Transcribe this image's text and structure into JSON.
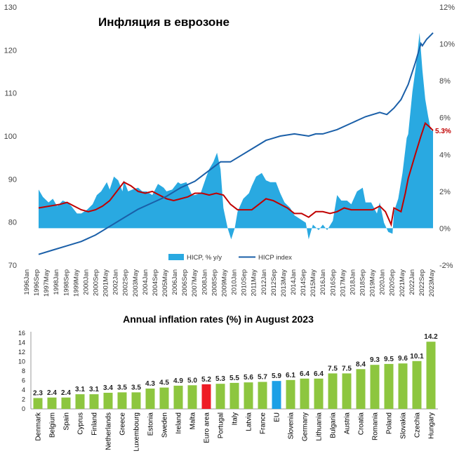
{
  "chart_data": [
    {
      "type": "area",
      "title": "Инфляция в еврозоне",
      "y_left": {
        "min": 70,
        "max": 130,
        "ticks": [
          "70",
          "80",
          "90",
          "100",
          "110",
          "120",
          "130"
        ]
      },
      "y_right": {
        "min": -2,
        "max": 12,
        "ticks": [
          "-2%",
          "0%",
          "2%",
          "4%",
          "6%",
          "8%",
          "10%",
          "12%"
        ]
      },
      "x_start": 1996.0,
      "x_end": 2023.75,
      "x_ticks": [
        "1996Jan",
        "1996Sep",
        "1997May",
        "1998Jan",
        "1998Sep",
        "1999May",
        "2000Jan",
        "2000Sep",
        "2001May",
        "2002Jan",
        "2002Sep",
        "2003May",
        "2004Jan",
        "2004Sep",
        "2005May",
        "2006Jan",
        "2006Sep",
        "2007May",
        "2008Jan",
        "2008Sep",
        "2009May",
        "2010Jan",
        "2010Sep",
        "2011May",
        "2012Jan",
        "2012Sep",
        "2013May",
        "2014Jan",
        "2014Sep",
        "2015May",
        "2016Jan",
        "2016Sep",
        "2017May",
        "2018Jan",
        "2018Sep",
        "2019May",
        "2020Jan",
        "2020Sep",
        "2021May",
        "2022Jan",
        "2022Sep",
        "2023May"
      ],
      "legend": {
        "position": "bottom",
        "items": [
          "HICP, % y/y",
          "HICP index"
        ]
      },
      "callout": "5.3%",
      "series": [
        {
          "name": "HICP, % y/y",
          "axis": "right",
          "style": "area",
          "color": "#29a9e1",
          "points": [
            [
              1996.0,
              2.1
            ],
            [
              1996.3,
              1.7
            ],
            [
              1996.7,
              1.4
            ],
            [
              1997.0,
              1.6
            ],
            [
              1997.3,
              1.2
            ],
            [
              1997.7,
              1.5
            ],
            [
              1998.0,
              1.4
            ],
            [
              1998.3,
              1.2
            ],
            [
              1998.7,
              0.8
            ],
            [
              1999.0,
              0.8
            ],
            [
              1999.4,
              1.0
            ],
            [
              1999.8,
              1.3
            ],
            [
              2000.1,
              1.8
            ],
            [
              2000.4,
              2.0
            ],
            [
              2000.8,
              2.5
            ],
            [
              2001.0,
              2.1
            ],
            [
              2001.3,
              2.8
            ],
            [
              2001.6,
              2.6
            ],
            [
              2001.9,
              2.0
            ],
            [
              2002.0,
              2.6
            ],
            [
              2002.3,
              2.0
            ],
            [
              2002.6,
              2.1
            ],
            [
              2003.0,
              2.2
            ],
            [
              2003.3,
              2.0
            ],
            [
              2003.6,
              2.0
            ],
            [
              2004.0,
              1.8
            ],
            [
              2004.4,
              2.4
            ],
            [
              2004.8,
              2.2
            ],
            [
              2005.0,
              2.0
            ],
            [
              2005.4,
              2.1
            ],
            [
              2005.8,
              2.5
            ],
            [
              2006.0,
              2.4
            ],
            [
              2006.4,
              2.5
            ],
            [
              2006.8,
              1.8
            ],
            [
              2007.0,
              1.8
            ],
            [
              2007.4,
              1.9
            ],
            [
              2007.8,
              2.8
            ],
            [
              2008.0,
              3.2
            ],
            [
              2008.3,
              3.6
            ],
            [
              2008.55,
              4.1
            ],
            [
              2008.8,
              3.2
            ],
            [
              2009.0,
              1.1
            ],
            [
              2009.3,
              0.0
            ],
            [
              2009.55,
              -0.6
            ],
            [
              2009.8,
              0.0
            ],
            [
              2010.0,
              0.9
            ],
            [
              2010.4,
              1.6
            ],
            [
              2010.8,
              1.9
            ],
            [
              2011.0,
              2.3
            ],
            [
              2011.3,
              2.8
            ],
            [
              2011.7,
              3.0
            ],
            [
              2012.0,
              2.6
            ],
            [
              2012.3,
              2.5
            ],
            [
              2012.7,
              2.5
            ],
            [
              2013.0,
              1.9
            ],
            [
              2013.3,
              1.4
            ],
            [
              2013.7,
              1.1
            ],
            [
              2014.0,
              0.7
            ],
            [
              2014.4,
              0.5
            ],
            [
              2014.8,
              0.3
            ],
            [
              2015.0,
              -0.6
            ],
            [
              2015.3,
              0.2
            ],
            [
              2015.7,
              -0.1
            ],
            [
              2016.0,
              0.2
            ],
            [
              2016.3,
              -0.1
            ],
            [
              2016.7,
              0.4
            ],
            [
              2017.0,
              1.8
            ],
            [
              2017.3,
              1.5
            ],
            [
              2017.7,
              1.5
            ],
            [
              2018.0,
              1.3
            ],
            [
              2018.4,
              2.0
            ],
            [
              2018.8,
              2.2
            ],
            [
              2019.0,
              1.4
            ],
            [
              2019.4,
              1.4
            ],
            [
              2019.8,
              0.8
            ],
            [
              2020.0,
              1.4
            ],
            [
              2020.3,
              0.3
            ],
            [
              2020.6,
              -0.2
            ],
            [
              2020.9,
              -0.3
            ],
            [
              2021.0,
              0.9
            ],
            [
              2021.3,
              1.6
            ],
            [
              2021.6,
              3.0
            ],
            [
              2021.9,
              4.9
            ],
            [
              2022.0,
              5.1
            ],
            [
              2022.3,
              7.4
            ],
            [
              2022.6,
              9.1
            ],
            [
              2022.8,
              10.6
            ],
            [
              2023.0,
              8.6
            ],
            [
              2023.2,
              7.0
            ],
            [
              2023.4,
              6.1
            ],
            [
              2023.6,
              5.3
            ],
            [
              2023.75,
              5.3
            ]
          ]
        },
        {
          "name": "",
          "axis": "right",
          "style": "line",
          "color": "#c00000",
          "points": [
            [
              1996.0,
              1.1
            ],
            [
              1997.5,
              1.3
            ],
            [
              1998.0,
              1.4
            ],
            [
              1998.5,
              1.2
            ],
            [
              1999.0,
              1.0
            ],
            [
              1999.5,
              0.9
            ],
            [
              2000.0,
              1.0
            ],
            [
              2000.5,
              1.2
            ],
            [
              2001.0,
              1.5
            ],
            [
              2001.5,
              2.0
            ],
            [
              2002.0,
              2.5
            ],
            [
              2002.5,
              2.3
            ],
            [
              2003.0,
              2.0
            ],
            [
              2003.5,
              1.9
            ],
            [
              2004.0,
              2.0
            ],
            [
              2004.5,
              1.8
            ],
            [
              2005.0,
              1.6
            ],
            [
              2005.5,
              1.5
            ],
            [
              2006.0,
              1.6
            ],
            [
              2006.5,
              1.7
            ],
            [
              2007.0,
              1.9
            ],
            [
              2007.5,
              1.9
            ],
            [
              2008.0,
              1.8
            ],
            [
              2008.5,
              1.9
            ],
            [
              2009.0,
              1.8
            ],
            [
              2009.5,
              1.3
            ],
            [
              2010.0,
              1.0
            ],
            [
              2010.5,
              1.0
            ],
            [
              2011.0,
              1.0
            ],
            [
              2011.5,
              1.3
            ],
            [
              2012.0,
              1.6
            ],
            [
              2012.5,
              1.5
            ],
            [
              2013.0,
              1.3
            ],
            [
              2013.5,
              1.1
            ],
            [
              2014.0,
              0.8
            ],
            [
              2014.5,
              0.8
            ],
            [
              2015.0,
              0.6
            ],
            [
              2015.5,
              0.9
            ],
            [
              2016.0,
              0.9
            ],
            [
              2016.5,
              0.8
            ],
            [
              2017.0,
              0.9
            ],
            [
              2017.5,
              1.1
            ],
            [
              2018.0,
              1.0
            ],
            [
              2018.5,
              1.0
            ],
            [
              2019.0,
              1.0
            ],
            [
              2019.5,
              1.0
            ],
            [
              2020.0,
              1.2
            ],
            [
              2020.4,
              0.9
            ],
            [
              2020.8,
              0.2
            ],
            [
              2021.0,
              1.1
            ],
            [
              2021.5,
              0.9
            ],
            [
              2021.8,
              1.9
            ],
            [
              2022.0,
              2.7
            ],
            [
              2022.5,
              4.0
            ],
            [
              2022.9,
              5.0
            ],
            [
              2023.2,
              5.7
            ],
            [
              2023.5,
              5.5
            ],
            [
              2023.75,
              5.3
            ]
          ]
        },
        {
          "name": "HICP index",
          "axis": "left",
          "style": "line",
          "color": "#1a5fa8",
          "points": [
            [
              1996.0,
              72.5
            ],
            [
              1997.0,
              73.5
            ],
            [
              1998.0,
              74.5
            ],
            [
              1999.0,
              75.5
            ],
            [
              2000.0,
              77.0
            ],
            [
              2001.0,
              79.0
            ],
            [
              2002.0,
              81.0
            ],
            [
              2003.0,
              83.0
            ],
            [
              2004.0,
              84.5
            ],
            [
              2005.0,
              86.0
            ],
            [
              2006.0,
              88.0
            ],
            [
              2007.0,
              89.5
            ],
            [
              2008.0,
              92.0
            ],
            [
              2008.8,
              94.0
            ],
            [
              2009.5,
              94.0
            ],
            [
              2010.0,
              95.0
            ],
            [
              2011.0,
              97.0
            ],
            [
              2012.0,
              99.0
            ],
            [
              2013.0,
              100.0
            ],
            [
              2014.0,
              100.5
            ],
            [
              2015.0,
              100.0
            ],
            [
              2015.5,
              100.5
            ],
            [
              2016.0,
              100.5
            ],
            [
              2017.0,
              101.5
            ],
            [
              2018.0,
              103.0
            ],
            [
              2019.0,
              104.5
            ],
            [
              2020.0,
              105.5
            ],
            [
              2020.5,
              105.0
            ],
            [
              2021.0,
              106.5
            ],
            [
              2021.5,
              108.5
            ],
            [
              2022.0,
              112.0
            ],
            [
              2022.5,
              117.0
            ],
            [
              2022.9,
              121.5
            ],
            [
              2023.0,
              121.0
            ],
            [
              2023.3,
              122.5
            ],
            [
              2023.6,
              123.5
            ],
            [
              2023.75,
              124.0
            ]
          ]
        }
      ]
    },
    {
      "type": "bar",
      "title": "Annual inflation rates (%) in August 2023",
      "ylim": [
        0,
        16
      ],
      "y_ticks": [
        "0",
        "2",
        "4",
        "6",
        "8",
        "10",
        "12",
        "14",
        "16"
      ],
      "categories": [
        "Denmark",
        "Belgium",
        "Spain",
        "Cyprus",
        "Finland",
        "Netherlands",
        "Greece",
        "Luxembourg",
        "Estonia",
        "Sweden",
        "Ireland",
        "Malta",
        "Euro area",
        "Portugal",
        "Italy",
        "Latvia",
        "France",
        "EU",
        "Slovenia",
        "Germany",
        "Lithuania",
        "Bulgaria",
        "Austria",
        "Croatia",
        "Romania",
        "Poland",
        "Slovakia",
        "Czechia",
        "Hungary"
      ],
      "values": [
        2.3,
        2.4,
        2.4,
        3.1,
        3.1,
        3.4,
        3.5,
        3.5,
        4.3,
        4.5,
        4.9,
        5.0,
        5.2,
        5.3,
        5.5,
        5.6,
        5.7,
        5.9,
        6.1,
        6.4,
        6.4,
        7.5,
        7.5,
        8.4,
        9.3,
        9.5,
        9.6,
        10.1,
        14.2
      ],
      "value_labels": [
        "2.3",
        "2.4",
        "2.4",
        "3.1",
        "3.1",
        "3.4",
        "3.5",
        "3.5",
        "4.3",
        "4.5",
        "4.9",
        "5.0",
        "5.2",
        "5.3",
        "5.5",
        "5.6",
        "5.7",
        "5.9",
        "6.1",
        "6.4",
        "6.4",
        "7.5",
        "7.5",
        "8.4",
        "9.3",
        "9.5",
        "9.6",
        "10.1",
        "14.2"
      ],
      "colors": {
        "default": "#8dc63f",
        "Euro area": "#ee1c25",
        "EU": "#1ca0e6"
      }
    }
  ]
}
